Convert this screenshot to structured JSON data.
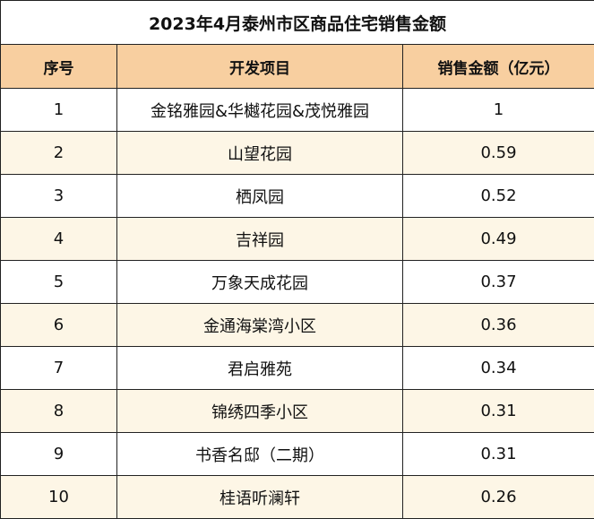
{
  "chart_data": {
    "type": "table",
    "title": "2023年4月泰州市区商品住宅销售金额",
    "columns": [
      "序号",
      "开发项目",
      "销售金额（亿元）"
    ],
    "rows": [
      {
        "rank": "1",
        "project": "金铭雅园&华樾花园&茂悦雅园",
        "amount": "1"
      },
      {
        "rank": "2",
        "project": "山望花园",
        "amount": "0.59"
      },
      {
        "rank": "3",
        "project": "栖凤园",
        "amount": "0.52"
      },
      {
        "rank": "4",
        "project": "吉祥园",
        "amount": "0.49"
      },
      {
        "rank": "5",
        "project": "万象天成花园",
        "amount": "0.37"
      },
      {
        "rank": "6",
        "project": "金通海棠湾小区",
        "amount": "0.36"
      },
      {
        "rank": "7",
        "project": "君启雅苑",
        "amount": "0.34"
      },
      {
        "rank": "8",
        "project": "锦绣四季小区",
        "amount": "0.31"
      },
      {
        "rank": "9",
        "project": "书香名邸（二期）",
        "amount": "0.31"
      },
      {
        "rank": "10",
        "project": "桂语听澜轩",
        "amount": "0.26"
      }
    ]
  },
  "colors": {
    "header_background": "#f8cfa0",
    "even_row_background": "#fdf6e6",
    "odd_row_background": "#ffffff",
    "border": "#222222"
  }
}
